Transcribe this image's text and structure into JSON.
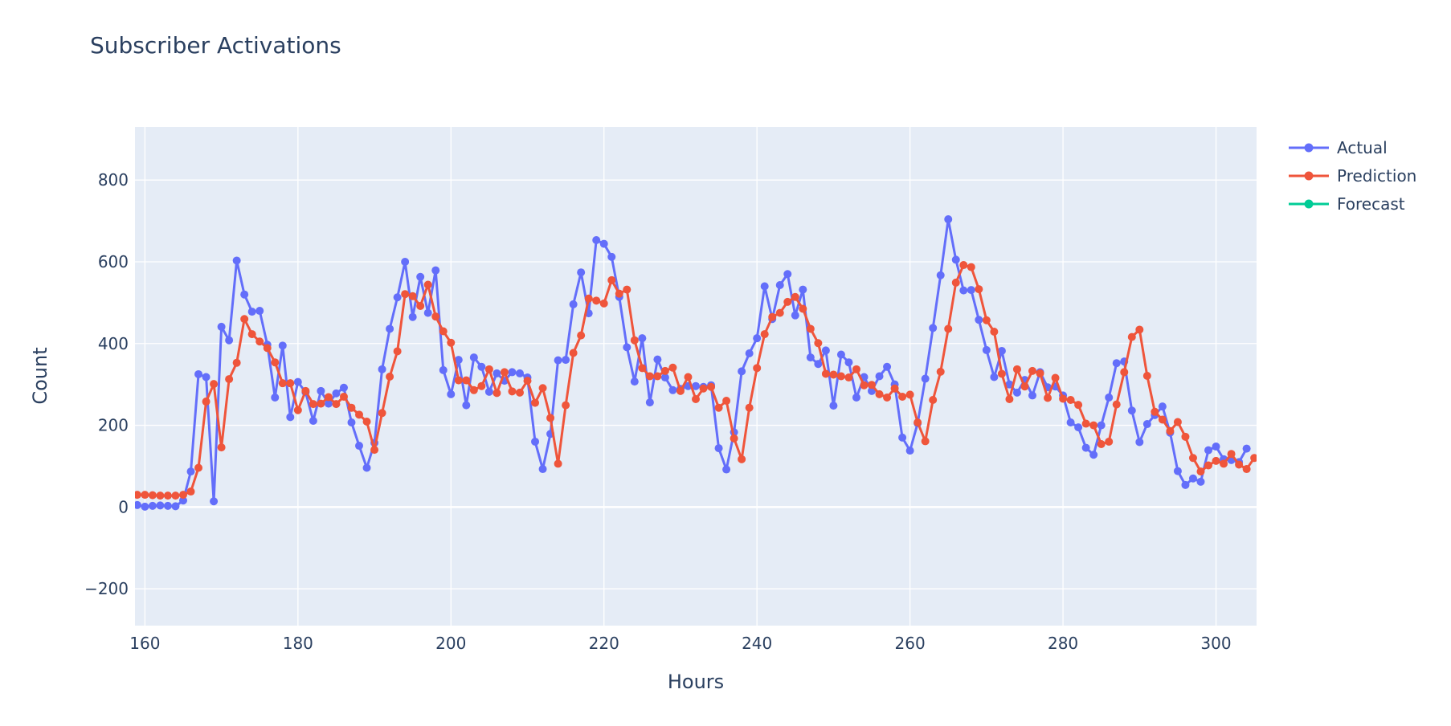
{
  "chart_data": {
    "type": "line",
    "title": "Subscriber Activations",
    "xlabel": "Hours",
    "ylabel": "Count",
    "xlim": [
      158.7,
      305.3
    ],
    "ylim": [
      -290,
      930
    ],
    "x_ticks": [
      160,
      180,
      200,
      220,
      240,
      260,
      280,
      300
    ],
    "x_tick_labels": [
      "160",
      "180",
      "200",
      "220",
      "240",
      "260",
      "280",
      "300"
    ],
    "y_ticks": [
      -200,
      0,
      200,
      400,
      600,
      800
    ],
    "y_tick_labels": [
      "−200",
      "0",
      "200",
      "400",
      "600",
      "800"
    ],
    "grid": true,
    "legend_position": "top-right",
    "background_color": "#E5ECF6",
    "x_start": 159,
    "series": [
      {
        "name": "Actual",
        "color": "#636EFA",
        "values": [
          5,
          1,
          3,
          4,
          3,
          2,
          16,
          87,
          325,
          318,
          14,
          441,
          408,
          603,
          520,
          478,
          480,
          397,
          268,
          395,
          220,
          306,
          281,
          211,
          284,
          253,
          278,
          292,
          207,
          150,
          96,
          157,
          337,
          436,
          513,
          600,
          465,
          563,
          475,
          579,
          335,
          276,
          360,
          249,
          366,
          343,
          282,
          327,
          309,
          330,
          327,
          317,
          160,
          93,
          179,
          359,
          360,
          496,
          574,
          474,
          653,
          644,
          612,
          514,
          391,
          307,
          413,
          256,
          361,
          317,
          286,
          289,
          296,
          296,
          294,
          298,
          144,
          92,
          183,
          332,
          376,
          413,
          540,
          460,
          543,
          570,
          469,
          532,
          366,
          350,
          383,
          248,
          373,
          354,
          268,
          318,
          284,
          320,
          343,
          300,
          170,
          138,
          205,
          314,
          438,
          567,
          704,
          605,
          530,
          531,
          458,
          384,
          318,
          382,
          300,
          280,
          311,
          273,
          330,
          293,
          295,
          273,
          207,
          195,
          145,
          128,
          200,
          268,
          352,
          356,
          236,
          159,
          203,
          225,
          246,
          182,
          88,
          54,
          70,
          62,
          139,
          148,
          117,
          115,
          110,
          143
        ]
      },
      {
        "name": "Prediction",
        "color": "#EF553B",
        "values": [
          30,
          30,
          29,
          28,
          28,
          28,
          30,
          38,
          96,
          258,
          301,
          146,
          313,
          353,
          460,
          423,
          405,
          389,
          354,
          303,
          303,
          237,
          284,
          252,
          253,
          269,
          252,
          270,
          243,
          226,
          209,
          140,
          230,
          319,
          381,
          521,
          516,
          492,
          544,
          466,
          430,
          402,
          310,
          310,
          286,
          296,
          337,
          279,
          330,
          283,
          280,
          309,
          255,
          291,
          218,
          106,
          249,
          377,
          420,
          510,
          505,
          498,
          555,
          522,
          532,
          408,
          340,
          320,
          320,
          333,
          341,
          284,
          318,
          264,
          290,
          294,
          243,
          260,
          168,
          117,
          243,
          340,
          423,
          465,
          475,
          502,
          514,
          485,
          436,
          401,
          326,
          324,
          320,
          317,
          337,
          298,
          299,
          276,
          268,
          290,
          270,
          275,
          207,
          161,
          262,
          331,
          436,
          549,
          592,
          587,
          533,
          457,
          429,
          326,
          264,
          337,
          295,
          333,
          327,
          267,
          316,
          265,
          262,
          250,
          204,
          200,
          154,
          160,
          251,
          330,
          416,
          434,
          321,
          233,
          214,
          186,
          208,
          172,
          120,
          87,
          102,
          113,
          106,
          130,
          104,
          93,
          120
        ]
      },
      {
        "name": "Forecast",
        "color": "#00CC96",
        "values": []
      }
    ]
  }
}
